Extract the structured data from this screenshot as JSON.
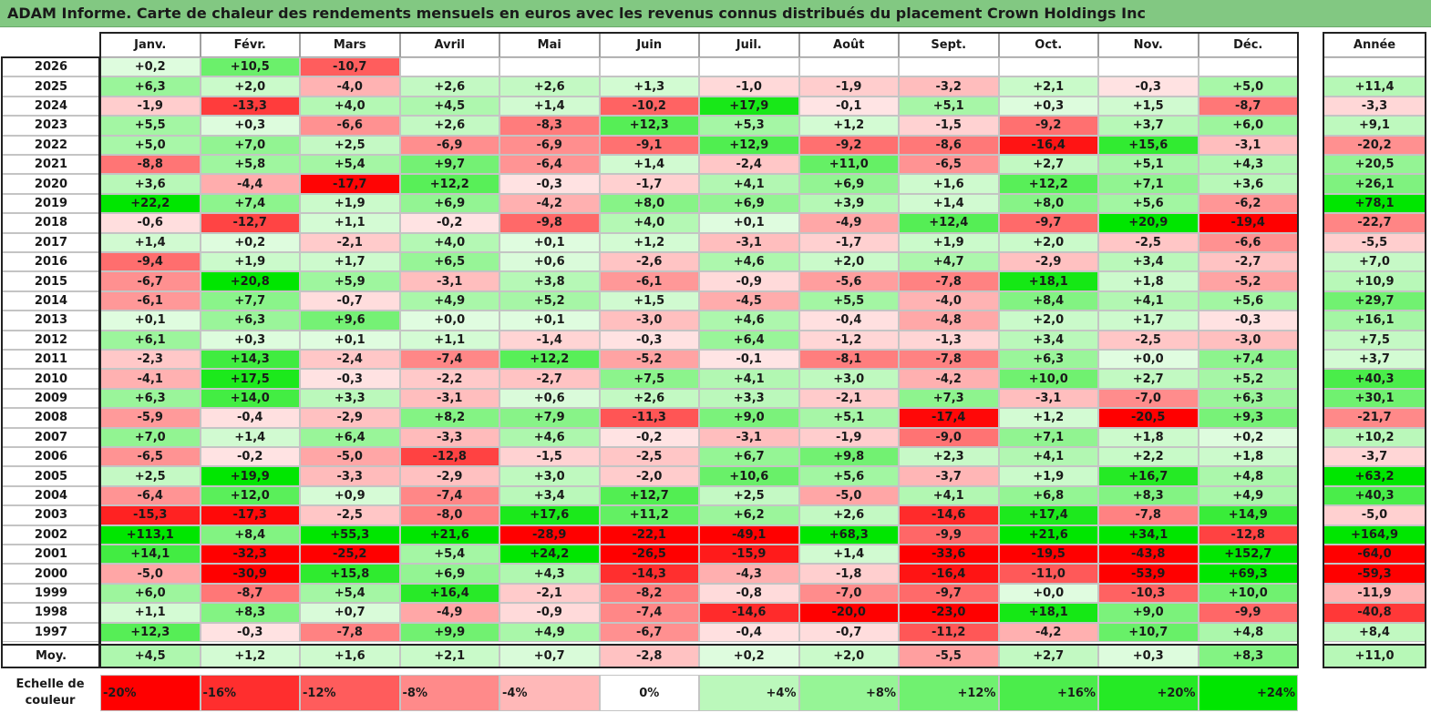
{
  "title": "ADAM Informe. Carte de chaleur des rendements mensuels en euros avec les revenus connus distribués du placement Crown Holdings Inc",
  "chart_data": {
    "type": "heatmap",
    "title": "ADAM Informe. Carte de chaleur des rendements mensuels en euros avec les revenus connus distribués du placement Crown Holdings Inc",
    "months": [
      "Janv.",
      "Févr.",
      "Mars",
      "Avril",
      "Mai",
      "Juin",
      "Juil.",
      "Août",
      "Sept.",
      "Oct.",
      "Nov.",
      "Déc."
    ],
    "year_header": "Année",
    "rows": [
      {
        "label": "2026",
        "values": [
          "+0,2",
          "+10,5",
          "-10,7",
          "",
          "",
          "",
          "",
          "",
          "",
          "",
          "",
          ""
        ],
        "year": ""
      },
      {
        "label": "2025",
        "values": [
          "+6,3",
          "+2,0",
          "-4,0",
          "+2,6",
          "+2,6",
          "+1,3",
          "-1,0",
          "-1,9",
          "-3,2",
          "+2,1",
          "-0,3",
          "+5,0"
        ],
        "year": "+11,4"
      },
      {
        "label": "2024",
        "values": [
          "-1,9",
          "-13,3",
          "+4,0",
          "+4,5",
          "+1,4",
          "-10,2",
          "+17,9",
          "-0,1",
          "+5,1",
          "+0,3",
          "+1,5",
          "-8,7"
        ],
        "year": "-3,3"
      },
      {
        "label": "2023",
        "values": [
          "+5,5",
          "+0,3",
          "-6,6",
          "+2,6",
          "-8,3",
          "+12,3",
          "+5,3",
          "+1,2",
          "-1,5",
          "-9,2",
          "+3,7",
          "+6,0"
        ],
        "year": "+9,1"
      },
      {
        "label": "2022",
        "values": [
          "+5,0",
          "+7,0",
          "+2,5",
          "-6,9",
          "-6,9",
          "-9,1",
          "+12,9",
          "-9,2",
          "-8,6",
          "-16,4",
          "+15,6",
          "-3,1"
        ],
        "year": "-20,2"
      },
      {
        "label": "2021",
        "values": [
          "-8,8",
          "+5,8",
          "+5,4",
          "+9,7",
          "-6,4",
          "+1,4",
          "-2,4",
          "+11,0",
          "-6,5",
          "+2,7",
          "+5,1",
          "+4,3"
        ],
        "year": "+20,5"
      },
      {
        "label": "2020",
        "values": [
          "+3,6",
          "-4,4",
          "-17,7",
          "+12,2",
          "-0,3",
          "-1,7",
          "+4,1",
          "+6,9",
          "+1,6",
          "+12,2",
          "+7,1",
          "+3,6"
        ],
        "year": "+26,1"
      },
      {
        "label": "2019",
        "values": [
          "+22,2",
          "+7,4",
          "+1,9",
          "+6,9",
          "-4,2",
          "+8,0",
          "+6,9",
          "+3,9",
          "+1,4",
          "+8,0",
          "+5,6",
          "-6,2"
        ],
        "year": "+78,1"
      },
      {
        "label": "2018",
        "values": [
          "-0,6",
          "-12,7",
          "+1,1",
          "-0,2",
          "-9,8",
          "+4,0",
          "+0,1",
          "-4,9",
          "+12,4",
          "-9,7",
          "+20,9",
          "-19,4"
        ],
        "year": "-22,7"
      },
      {
        "label": "2017",
        "values": [
          "+1,4",
          "+0,2",
          "-2,1",
          "+4,0",
          "+0,1",
          "+1,2",
          "-3,1",
          "-1,7",
          "+1,9",
          "+2,0",
          "-2,5",
          "-6,6"
        ],
        "year": "-5,5"
      },
      {
        "label": "2016",
        "values": [
          "-9,4",
          "+1,9",
          "+1,7",
          "+6,5",
          "+0,6",
          "-2,6",
          "+4,6",
          "+2,0",
          "+4,7",
          "-2,9",
          "+3,4",
          "-2,7"
        ],
        "year": "+7,0"
      },
      {
        "label": "2015",
        "values": [
          "-6,7",
          "+20,8",
          "+5,9",
          "-3,1",
          "+3,8",
          "-6,1",
          "-0,9",
          "-5,6",
          "-7,8",
          "+18,1",
          "+1,8",
          "-5,2"
        ],
        "year": "+10,9"
      },
      {
        "label": "2014",
        "values": [
          "-6,1",
          "+7,7",
          "-0,7",
          "+4,9",
          "+5,2",
          "+1,5",
          "-4,5",
          "+5,5",
          "-4,0",
          "+8,4",
          "+4,1",
          "+5,6"
        ],
        "year": "+29,7"
      },
      {
        "label": "2013",
        "values": [
          "+0,1",
          "+6,3",
          "+9,6",
          "+0,0",
          "+0,1",
          "-3,0",
          "+4,6",
          "-0,4",
          "-4,8",
          "+2,0",
          "+1,7",
          "-0,3"
        ],
        "year": "+16,1"
      },
      {
        "label": "2012",
        "values": [
          "+6,1",
          "+0,3",
          "+0,1",
          "+1,1",
          "-1,4",
          "-0,3",
          "+6,4",
          "-1,2",
          "-1,3",
          "+3,4",
          "-2,5",
          "-3,0"
        ],
        "year": "+7,5"
      },
      {
        "label": "2011",
        "values": [
          "-2,3",
          "+14,3",
          "-2,4",
          "-7,4",
          "+12,2",
          "-5,2",
          "-0,1",
          "-8,1",
          "-7,8",
          "+6,3",
          "+0,0",
          "+7,4"
        ],
        "year": "+3,7"
      },
      {
        "label": "2010",
        "values": [
          "-4,1",
          "+17,5",
          "-0,3",
          "-2,2",
          "-2,7",
          "+7,5",
          "+4,1",
          "+3,0",
          "-4,2",
          "+10,0",
          "+2,7",
          "+5,2"
        ],
        "year": "+40,3"
      },
      {
        "label": "2009",
        "values": [
          "+6,3",
          "+14,0",
          "+3,3",
          "-3,1",
          "+0,6",
          "+2,6",
          "+3,3",
          "-2,1",
          "+7,3",
          "-3,1",
          "-7,0",
          "+6,3"
        ],
        "year": "+30,1"
      },
      {
        "label": "2008",
        "values": [
          "-5,9",
          "-0,4",
          "-2,9",
          "+8,2",
          "+7,9",
          "-11,3",
          "+9,0",
          "+5,1",
          "-17,4",
          "+1,2",
          "-20,5",
          "+9,3"
        ],
        "year": "-21,7"
      },
      {
        "label": "2007",
        "values": [
          "+7,0",
          "+1,4",
          "+6,4",
          "-3,3",
          "+4,6",
          "-0,2",
          "-3,1",
          "-1,9",
          "-9,0",
          "+7,1",
          "+1,8",
          "+0,2"
        ],
        "year": "+10,2"
      },
      {
        "label": "2006",
        "values": [
          "-6,5",
          "-0,2",
          "-5,0",
          "-12,8",
          "-1,5",
          "-2,5",
          "+6,7",
          "+9,8",
          "+2,3",
          "+4,1",
          "+2,2",
          "+1,8"
        ],
        "year": "-3,7"
      },
      {
        "label": "2005",
        "values": [
          "+2,5",
          "+19,9",
          "-3,3",
          "-2,9",
          "+3,0",
          "-2,0",
          "+10,6",
          "+5,6",
          "-3,7",
          "+1,9",
          "+16,7",
          "+4,8"
        ],
        "year": "+63,2"
      },
      {
        "label": "2004",
        "values": [
          "-6,4",
          "+12,0",
          "+0,9",
          "-7,4",
          "+3,4",
          "+12,7",
          "+2,5",
          "-5,0",
          "+4,1",
          "+6,8",
          "+8,3",
          "+4,9"
        ],
        "year": "+40,3"
      },
      {
        "label": "2003",
        "values": [
          "-15,3",
          "-17,3",
          "-2,5",
          "-8,0",
          "+17,6",
          "+11,2",
          "+6,2",
          "+2,6",
          "-14,6",
          "+17,4",
          "-7,8",
          "+14,9"
        ],
        "year": "-5,0"
      },
      {
        "label": "2002",
        "values": [
          "+113,1",
          "+8,4",
          "+55,3",
          "+21,6",
          "-28,9",
          "-22,1",
          "-49,1",
          "+68,3",
          "-9,9",
          "+21,6",
          "+34,1",
          "-12,8"
        ],
        "year": "+164,9"
      },
      {
        "label": "2001",
        "values": [
          "+14,1",
          "-32,3",
          "-25,2",
          "+5,4",
          "+24,2",
          "-26,5",
          "-15,9",
          "+1,4",
          "-33,6",
          "-19,5",
          "-43,8",
          "+152,7"
        ],
        "year": "-64,0"
      },
      {
        "label": "2000",
        "values": [
          "-5,0",
          "-30,9",
          "+15,8",
          "+6,9",
          "+4,3",
          "-14,3",
          "-4,3",
          "-1,8",
          "-16,4",
          "-11,0",
          "-53,9",
          "+69,3"
        ],
        "year": "-59,3"
      },
      {
        "label": "1999",
        "values": [
          "+6,0",
          "-8,7",
          "+5,4",
          "+16,4",
          "-2,1",
          "-8,2",
          "-0,8",
          "-7,0",
          "-9,7",
          "+0,0",
          "-10,3",
          "+10,0"
        ],
        "year": "-11,9"
      },
      {
        "label": "1998",
        "values": [
          "+1,1",
          "+8,3",
          "+0,7",
          "-4,9",
          "-0,9",
          "-7,4",
          "-14,6",
          "-20,0",
          "-23,0",
          "+18,1",
          "+9,0",
          "-9,9"
        ],
        "year": "-40,8"
      },
      {
        "label": "1997",
        "values": [
          "+12,3",
          "-0,3",
          "-7,8",
          "+9,9",
          "+4,9",
          "-6,7",
          "-0,4",
          "-0,7",
          "-11,2",
          "-4,2",
          "+10,7",
          "+4,8"
        ],
        "year": "+8,4"
      }
    ],
    "average": {
      "label": "Moy.",
      "values": [
        "+4,5",
        "+1,2",
        "+1,6",
        "+2,1",
        "+0,7",
        "-2,8",
        "+0,2",
        "+2,0",
        "-5,5",
        "+2,7",
        "+0,3",
        "+8,3"
      ],
      "year": "+11,0"
    },
    "scale": {
      "label": "Echelle de couleur",
      "items": [
        "-20%",
        "-16%",
        "-12%",
        "-8%",
        "-4%",
        "0%",
        "+4%",
        "+8%",
        "+12%",
        "+16%",
        "+20%",
        "+24%"
      ],
      "levels": [
        -20,
        -16,
        -12,
        -8,
        -4,
        0,
        4,
        8,
        12,
        16,
        20,
        24
      ]
    },
    "colors": {
      "negative": "#ff0000",
      "positive": "#00e600",
      "neutral": "#ffffff",
      "title_bar": "#82c882"
    }
  }
}
